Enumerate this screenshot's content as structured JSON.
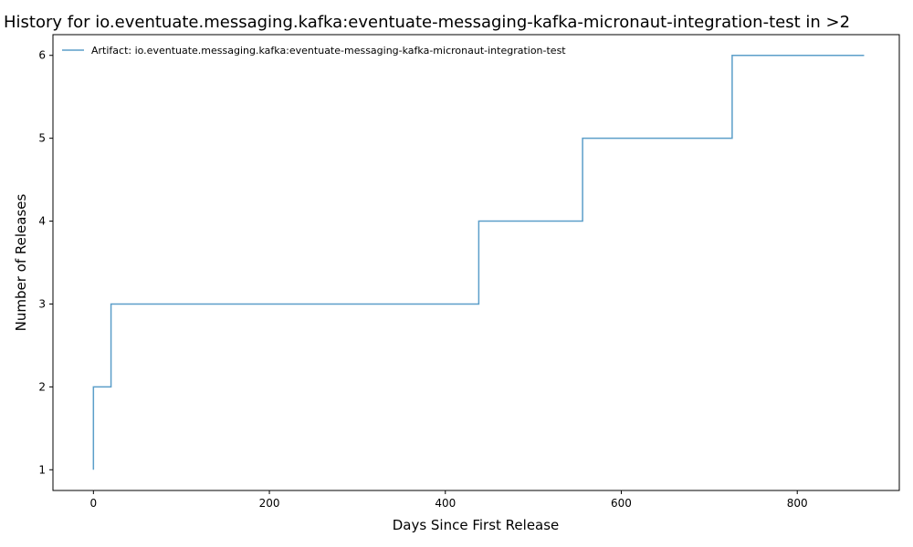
{
  "chart_data": {
    "type": "line",
    "drawstyle": "steps-post",
    "title": "History for io.eventuate.messaging.kafka:eventuate-messaging-kafka-micronaut-integration-test in >2",
    "xlabel": "Days Since First Release",
    "ylabel": "Number of Releases",
    "xlim": [
      -46,
      916
    ],
    "ylim": [
      0.75,
      6.25
    ],
    "xticks": [
      0,
      200,
      400,
      600,
      800
    ],
    "yticks": [
      1,
      2,
      3,
      4,
      5,
      6
    ],
    "grid": false,
    "legend_position": "top-left",
    "series": [
      {
        "name": "Artifact: io.eventuate.messaging.kafka:eventuate-messaging-kafka-micronaut-integration-test",
        "color": "#5b9ec9",
        "x": [
          0,
          0,
          20,
          438,
          556,
          726,
          876
        ],
        "y": [
          1,
          2,
          3,
          4,
          5,
          6,
          6
        ]
      }
    ]
  }
}
